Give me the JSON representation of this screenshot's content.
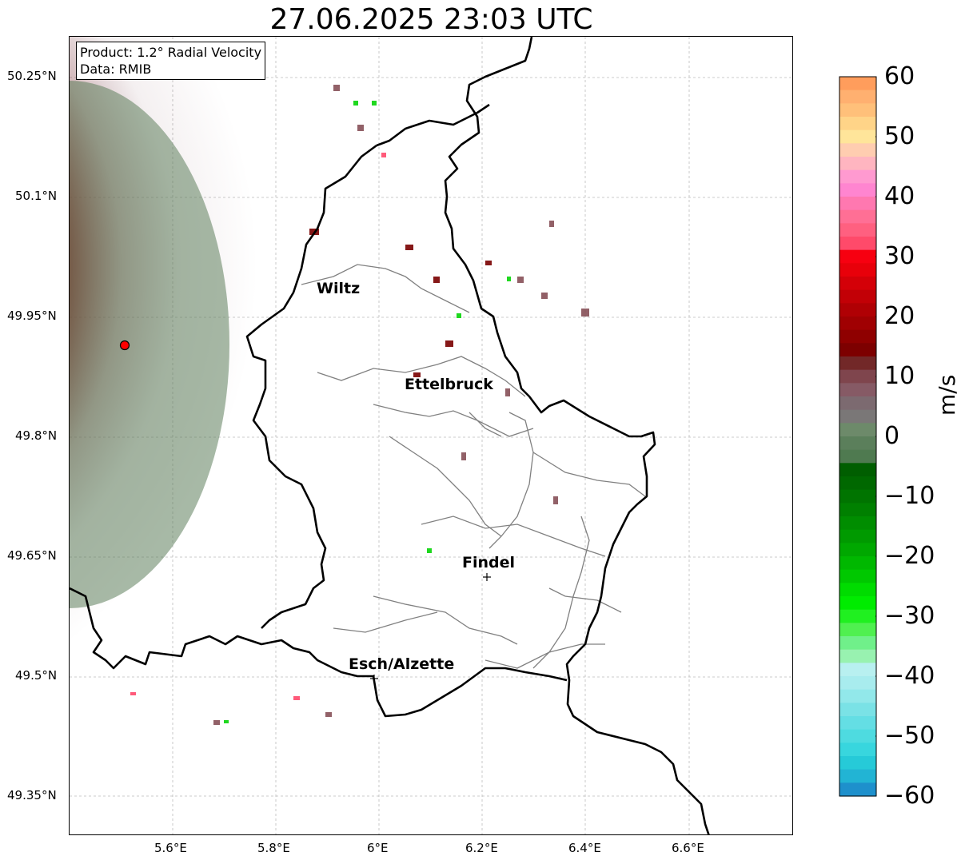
{
  "title": "27.06.2025 23:03 UTC",
  "info_box": {
    "product": "Product: 1.2° Radial Velocity",
    "data": "Data: RMIB"
  },
  "axes": {
    "x_ticks": [
      "5.6°E",
      "5.8°E",
      "6°E",
      "6.2°E",
      "6.4°E",
      "6.6°E"
    ],
    "y_ticks": [
      "50.25°N",
      "50.1°N",
      "49.95°N",
      "49.8°N",
      "49.65°N",
      "49.5°N",
      "49.35°N"
    ]
  },
  "cities": [
    {
      "name": "Wiltz"
    },
    {
      "name": "Ettelbruck"
    },
    {
      "name": "Findel"
    },
    {
      "name": "Esch/Alzette"
    }
  ],
  "colorbar": {
    "label": "m/s",
    "ticks": [
      "60",
      "50",
      "40",
      "30",
      "20",
      "10",
      "0",
      "−10",
      "−20",
      "−30",
      "−40",
      "−50",
      "−60"
    ],
    "colors_top_to_bottom": [
      "#ff9d5c",
      "#ffb070",
      "#ffc07a",
      "#ffd488",
      "#ffe59a",
      "#ffcdb0",
      "#ffb5c0",
      "#ff9ad0",
      "#ff85d0",
      "#ff78b0",
      "#ff6f95",
      "#ff6080",
      "#ff4a6a",
      "#f70010",
      "#e8000a",
      "#d40008",
      "#c20006",
      "#b00004",
      "#a00002",
      "#8f0000",
      "#7d0000",
      "#722828",
      "#7f454d",
      "#865a65",
      "#7c6a70",
      "#7a7777",
      "#6d8a6a",
      "#5b7f5b",
      "#4f7a50",
      "#005e00",
      "#006800",
      "#007400",
      "#008000",
      "#008d00",
      "#009a00",
      "#00a800",
      "#00b800",
      "#00c800",
      "#00dc00",
      "#00ec00",
      "#20f020",
      "#50f050",
      "#70f08a",
      "#98f2b0",
      "#b8f0f0",
      "#a8ecee",
      "#92e8ea",
      "#7ae2e6",
      "#64dee4",
      "#4edbe0",
      "#38d6de",
      "#26cad8",
      "#22b4d4",
      "#1e90cc"
    ]
  }
}
